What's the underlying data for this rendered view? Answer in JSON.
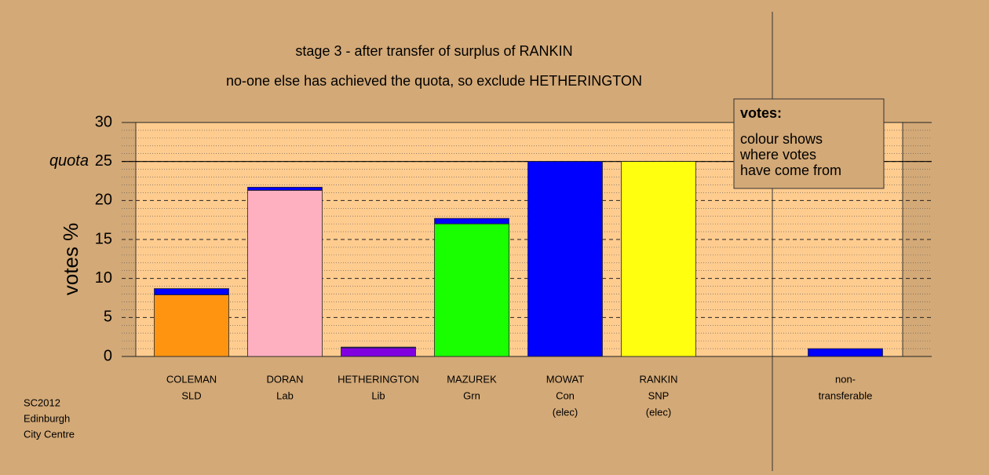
{
  "chart_data": {
    "type": "bar",
    "stacked": true,
    "title": "stage 3 - after transfer of surplus of RANKIN",
    "subtitle": "no-one else has achieved the quota, so exclude HETHERINGTON",
    "y_label": "votes %",
    "quota": 25,
    "quota_label": "quota",
    "note_title": "votes:",
    "note_lines": [
      "colour shows",
      "where votes",
      "have come from"
    ],
    "footer": [
      "SC2012",
      "Edinburgh",
      "City Centre"
    ],
    "categories": [
      [
        "COLEMAN",
        "SLD"
      ],
      [
        "DORAN",
        "Lab"
      ],
      [
        "HETHERINGTON",
        "Lib"
      ],
      [
        "MAZUREK",
        "Grn"
      ],
      [
        "MOWAT",
        "Con",
        "(elec)"
      ],
      [
        "RANKIN",
        "SNP",
        "(elec)"
      ],
      null,
      [
        "non-",
        "transferable"
      ]
    ],
    "series": [
      {
        "colors": [
          "#ff9411",
          "#ffb0c0",
          "#8000e0",
          "#1aff00",
          "#0000ff",
          "#ffff10",
          null,
          "#0000ff"
        ],
        "values": [
          7.9,
          21.3,
          1.1,
          17.0,
          25.0,
          25.0,
          null,
          0
        ]
      },
      {
        "color": "#0000ff",
        "values": [
          0.8,
          0.4,
          0.1,
          0.7,
          0,
          0,
          null,
          1.0
        ]
      }
    ],
    "ylim": [
      0,
      30
    ],
    "yticks": [
      0,
      5,
      10,
      15,
      20,
      25,
      30
    ],
    "yminorticks": [
      1,
      2,
      3,
      4,
      6,
      7,
      8,
      9,
      11,
      12,
      13,
      14,
      16,
      17,
      18,
      19,
      21,
      22,
      23,
      24,
      26,
      27,
      28,
      29
    ],
    "grid": true
  }
}
